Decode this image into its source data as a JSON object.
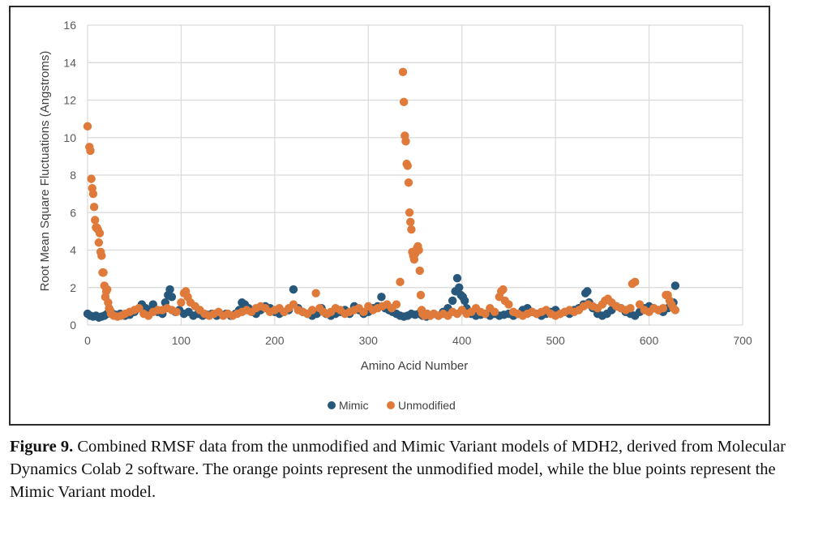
{
  "caption": {
    "label": "Figure 9.",
    "text": "Combined RMSF data from the unmodified and Mimic Variant models of MDH2, derived from Molecular Dynamics Colab 2 software. The orange points represent the unmodified model, while the blue points represent the Mimic Variant model."
  },
  "colors": {
    "mimic": "#27577a",
    "unmodified": "#e07a3a",
    "grid": "#d9d9d9"
  },
  "chart_data": {
    "type": "scatter",
    "title": "",
    "xlabel": "Amino Acid Number",
    "ylabel": "Root Mean Square Fluctuations (Angstroms)",
    "xlim": [
      0,
      700
    ],
    "ylim": [
      0,
      16
    ],
    "xticks": [
      0,
      100,
      200,
      300,
      400,
      500,
      600,
      700
    ],
    "yticks": [
      0,
      2,
      4,
      6,
      8,
      10,
      12,
      14,
      16
    ],
    "grid": true,
    "legend_position": "bottom",
    "series": [
      {
        "name": "Mimic",
        "x": [
          0,
          3,
          6,
          9,
          12,
          15,
          18,
          21,
          25,
          30,
          35,
          40,
          45,
          50,
          55,
          58,
          62,
          66,
          70,
          75,
          80,
          83,
          86,
          88,
          90,
          94,
          98,
          103,
          108,
          113,
          118,
          123,
          128,
          133,
          138,
          143,
          148,
          153,
          158,
          162,
          165,
          168,
          172,
          176,
          180,
          185,
          190,
          195,
          200,
          205,
          210,
          215,
          220,
          225,
          230,
          235,
          240,
          245,
          250,
          255,
          260,
          265,
          270,
          275,
          280,
          285,
          290,
          295,
          300,
          305,
          310,
          314,
          318,
          322,
          326,
          330,
          334,
          338,
          342,
          346,
          350,
          354,
          358,
          362,
          366,
          370,
          375,
          380,
          385,
          390,
          393,
          395,
          397,
          399,
          401,
          403,
          405,
          410,
          415,
          420,
          425,
          430,
          435,
          440,
          445,
          450,
          455,
          460,
          465,
          470,
          475,
          480,
          485,
          490,
          495,
          500,
          505,
          510,
          515,
          520,
          525,
          530,
          532,
          534,
          536,
          540,
          545,
          550,
          555,
          560,
          565,
          570,
          575,
          580,
          585,
          590,
          595,
          600,
          605,
          610,
          615,
          620,
          623,
          626,
          628
        ],
        "y": [
          0.6,
          0.5,
          0.45,
          0.5,
          0.4,
          0.45,
          0.5,
          0.6,
          0.7,
          0.55,
          0.6,
          0.5,
          0.55,
          0.7,
          0.9,
          1.1,
          0.9,
          0.8,
          1.1,
          0.7,
          0.6,
          1.2,
          1.6,
          1.9,
          1.5,
          0.7,
          0.8,
          0.6,
          0.7,
          0.5,
          0.6,
          0.5,
          0.55,
          0.6,
          0.5,
          0.55,
          0.6,
          0.5,
          0.6,
          0.8,
          1.2,
          1.1,
          0.9,
          0.7,
          0.6,
          0.8,
          1.0,
          0.9,
          0.7,
          0.6,
          0.7,
          0.8,
          1.9,
          0.9,
          0.7,
          0.6,
          0.5,
          0.6,
          0.9,
          0.6,
          0.5,
          0.6,
          0.7,
          0.8,
          0.6,
          1.0,
          0.8,
          0.6,
          0.7,
          0.9,
          1.0,
          1.5,
          0.9,
          0.8,
          0.7,
          0.6,
          0.5,
          0.45,
          0.5,
          0.6,
          0.55,
          0.6,
          0.5,
          0.45,
          0.5,
          0.6,
          0.5,
          0.7,
          0.9,
          1.3,
          1.8,
          2.5,
          2.0,
          1.6,
          1.5,
          1.3,
          0.9,
          0.6,
          0.5,
          0.55,
          0.6,
          0.5,
          0.6,
          0.5,
          0.55,
          0.6,
          0.5,
          0.6,
          0.8,
          0.9,
          0.7,
          0.6,
          0.5,
          0.6,
          0.7,
          0.8,
          0.6,
          0.7,
          0.6,
          0.8,
          0.9,
          1.1,
          1.7,
          1.8,
          1.2,
          0.9,
          0.6,
          0.5,
          0.6,
          0.8,
          1.0,
          0.9,
          0.7,
          0.6,
          0.5,
          0.7,
          0.9,
          1.0,
          0.9,
          0.8,
          0.7,
          0.9,
          1.0,
          1.2,
          2.1
        ]
      },
      {
        "name": "Unmodified",
        "x": [
          0,
          2,
          3,
          4,
          5,
          6,
          7,
          8,
          9,
          10,
          11,
          12,
          13,
          14,
          15,
          16,
          17,
          18,
          19,
          20,
          21,
          22,
          23,
          24,
          25,
          28,
          32,
          36,
          40,
          45,
          50,
          55,
          60,
          65,
          70,
          75,
          80,
          85,
          90,
          95,
          100,
          103,
          105,
          107,
          110,
          115,
          120,
          125,
          130,
          135,
          140,
          145,
          150,
          155,
          160,
          165,
          170,
          175,
          180,
          185,
          190,
          195,
          200,
          205,
          210,
          215,
          220,
          225,
          230,
          235,
          240,
          244,
          248,
          252,
          256,
          260,
          265,
          270,
          275,
          280,
          285,
          290,
          295,
          300,
          305,
          310,
          315,
          320,
          325,
          330,
          334,
          337,
          338,
          339,
          340,
          341,
          342,
          343,
          344,
          345,
          346,
          347,
          348,
          349,
          350,
          351,
          352,
          353,
          354,
          355,
          356,
          357,
          358,
          360,
          363,
          366,
          370,
          375,
          380,
          385,
          390,
          395,
          400,
          405,
          410,
          415,
          420,
          425,
          430,
          435,
          440,
          442,
          444,
          446,
          450,
          455,
          460,
          465,
          470,
          475,
          480,
          485,
          490,
          495,
          500,
          505,
          510,
          515,
          520,
          525,
          530,
          535,
          540,
          545,
          550,
          553,
          556,
          560,
          565,
          570,
          575,
          580,
          582,
          585,
          590,
          595,
          600,
          605,
          610,
          615,
          618,
          620,
          622,
          624,
          626,
          628
        ],
        "y": [
          10.6,
          9.5,
          9.3,
          7.8,
          7.3,
          7.0,
          6.3,
          5.6,
          5.2,
          5.2,
          5.1,
          4.4,
          4.9,
          3.9,
          3.7,
          2.8,
          2.8,
          2.1,
          1.5,
          1.8,
          1.9,
          1.2,
          0.9,
          0.8,
          0.6,
          0.5,
          0.45,
          0.5,
          0.6,
          0.7,
          0.8,
          0.9,
          0.6,
          0.5,
          0.7,
          0.8,
          0.8,
          0.9,
          0.8,
          0.7,
          1.2,
          1.7,
          1.8,
          1.5,
          1.2,
          1.0,
          0.8,
          0.6,
          0.5,
          0.6,
          0.7,
          0.5,
          0.6,
          0.5,
          0.6,
          0.7,
          0.8,
          0.7,
          0.9,
          1.0,
          0.9,
          0.7,
          0.8,
          0.9,
          0.7,
          0.9,
          1.1,
          0.8,
          0.7,
          0.6,
          0.8,
          1.7,
          0.9,
          0.7,
          0.6,
          0.7,
          0.9,
          0.8,
          0.6,
          0.7,
          0.8,
          0.9,
          0.7,
          1.0,
          0.8,
          0.9,
          1.0,
          1.1,
          0.9,
          1.1,
          2.3,
          13.5,
          11.9,
          10.1,
          9.8,
          8.6,
          8.5,
          7.6,
          6.0,
          5.5,
          5.1,
          3.9,
          3.7,
          3.5,
          3.8,
          3.9,
          4.1,
          4.2,
          4.0,
          2.9,
          1.6,
          0.8,
          0.6,
          0.5,
          0.6,
          0.5,
          0.6,
          0.5,
          0.6,
          0.5,
          0.7,
          0.6,
          0.8,
          0.6,
          0.7,
          0.9,
          0.7,
          0.6,
          0.9,
          0.7,
          1.5,
          1.8,
          1.9,
          1.3,
          1.1,
          0.7,
          0.6,
          0.5,
          0.6,
          0.7,
          0.6,
          0.7,
          0.8,
          0.6,
          0.5,
          0.6,
          0.7,
          0.8,
          0.7,
          0.8,
          1.0,
          1.1,
          1.0,
          0.9,
          1.1,
          1.3,
          1.4,
          1.2,
          1.0,
          0.9,
          0.8,
          0.9,
          2.2,
          2.3,
          1.1,
          0.8,
          0.7,
          0.9,
          0.8,
          0.9,
          1.6,
          1.6,
          1.3,
          1.1,
          0.9,
          0.8
        ]
      }
    ]
  }
}
